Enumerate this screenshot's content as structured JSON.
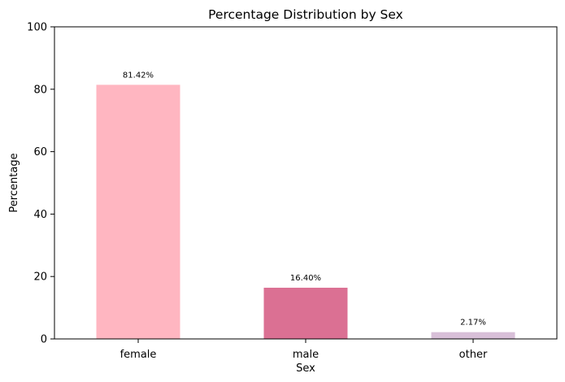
{
  "chart_data": {
    "type": "bar",
    "title": "Percentage Distribution by Sex",
    "xlabel": "Sex",
    "ylabel": "Percentage",
    "categories": [
      "female",
      "male",
      "other"
    ],
    "values": [
      81.42,
      16.4,
      2.17
    ],
    "data_labels": [
      "81.42%",
      "16.40%",
      "2.17%"
    ],
    "colors": [
      "#ffb6c1",
      "#db7093",
      "#d8bfd8"
    ],
    "ylim": [
      0,
      100
    ],
    "yticks": [
      0,
      20,
      40,
      60,
      80,
      100
    ],
    "grid": false,
    "legend": "none"
  }
}
